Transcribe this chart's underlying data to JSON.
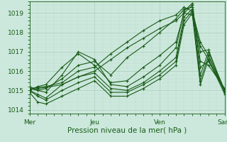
{
  "xlabel": "Pression niveau de la mer( hPa )",
  "xlim": [
    0,
    72
  ],
  "ylim": [
    1013.8,
    1019.6
  ],
  "yticks": [
    1014,
    1015,
    1016,
    1017,
    1018,
    1019
  ],
  "xtick_positions": [
    0,
    24,
    48,
    72
  ],
  "xtick_labels": [
    "Mer",
    "Jeu",
    "Ven",
    "Sam"
  ],
  "bg_color": "#cce8dc",
  "plot_bg_color": "#cce8dc",
  "line_color": "#1a5c1a",
  "grid_major_color": "#aacebb",
  "grid_minor_color": "#bedad0",
  "series": [
    [
      0,
      1015.1,
      3,
      1015.15,
      6,
      1015.2,
      12,
      1015.4,
      18,
      1016.0,
      24,
      1016.2,
      30,
      1016.9,
      36,
      1017.5,
      42,
      1018.1,
      48,
      1018.6,
      54,
      1018.9,
      57,
      1019.3,
      60,
      1019.1,
      63,
      1017.5,
      66,
      1016.8,
      72,
      1015.0
    ],
    [
      0,
      1015.2,
      3,
      1015.0,
      6,
      1015.1,
      12,
      1015.6,
      18,
      1016.3,
      24,
      1016.5,
      30,
      1015.8,
      36,
      1016.7,
      42,
      1017.3,
      48,
      1018.0,
      54,
      1018.7,
      57,
      1019.2,
      60,
      1019.3,
      63,
      1017.0,
      66,
      1017.1,
      72,
      1014.9
    ],
    [
      0,
      1015.0,
      3,
      1015.2,
      6,
      1015.3,
      12,
      1016.2,
      18,
      1016.9,
      24,
      1016.3,
      30,
      1015.4,
      36,
      1015.5,
      42,
      1016.2,
      48,
      1016.8,
      54,
      1017.5,
      57,
      1019.0,
      60,
      1019.4,
      63,
      1016.5,
      66,
      1016.3,
      72,
      1015.1
    ],
    [
      0,
      1015.1,
      3,
      1015.0,
      6,
      1014.9,
      12,
      1015.8,
      18,
      1017.0,
      24,
      1016.6,
      30,
      1015.3,
      36,
      1015.2,
      42,
      1015.7,
      48,
      1016.3,
      54,
      1017.2,
      57,
      1019.1,
      60,
      1019.5,
      63,
      1016.2,
      66,
      1016.5,
      72,
      1015.0
    ],
    [
      0,
      1015.0,
      3,
      1014.8,
      6,
      1014.6,
      12,
      1015.3,
      18,
      1015.7,
      24,
      1015.9,
      30,
      1015.1,
      36,
      1015.0,
      42,
      1015.4,
      48,
      1016.0,
      54,
      1016.7,
      57,
      1018.8,
      60,
      1019.2,
      63,
      1015.8,
      66,
      1017.0,
      72,
      1015.0
    ],
    [
      0,
      1015.0,
      3,
      1014.7,
      6,
      1014.5,
      12,
      1015.0,
      18,
      1015.4,
      24,
      1015.7,
      30,
      1014.9,
      36,
      1014.9,
      42,
      1015.3,
      48,
      1015.8,
      54,
      1016.5,
      57,
      1018.6,
      60,
      1019.1,
      63,
      1015.5,
      66,
      1016.8,
      72,
      1014.9
    ],
    [
      0,
      1014.9,
      3,
      1014.4,
      6,
      1014.3,
      12,
      1014.7,
      18,
      1015.1,
      24,
      1015.5,
      30,
      1014.7,
      36,
      1014.7,
      42,
      1015.1,
      48,
      1015.6,
      54,
      1016.3,
      57,
      1018.4,
      60,
      1019.0,
      63,
      1015.3,
      66,
      1016.6,
      72,
      1014.8
    ],
    [
      0,
      1015.05,
      3,
      1015.1,
      6,
      1015.15,
      12,
      1015.3,
      18,
      1015.7,
      24,
      1016.0,
      30,
      1016.6,
      36,
      1017.2,
      42,
      1017.7,
      48,
      1018.2,
      54,
      1018.6,
      57,
      1019.0,
      60,
      1018.9,
      63,
      1017.3,
      66,
      1016.6,
      72,
      1014.95
    ]
  ],
  "marker": "+",
  "markersize": 3.5,
  "linewidth": 0.8
}
